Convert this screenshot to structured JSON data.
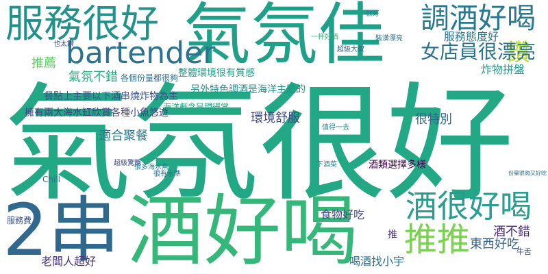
{
  "cloud": {
    "words": [
      {
        "text": "氣氛很好",
        "color": "#22a884"
      },
      {
        "text": "氣氛佳",
        "color": "#1fa088"
      },
      {
        "text": "酒好喝",
        "color": "#35b779"
      },
      {
        "text": "2串",
        "color": "#31688e"
      },
      {
        "text": "服務很好",
        "color": "#21918c"
      },
      {
        "text": "調酒好喝",
        "color": "#29798e"
      },
      {
        "text": "bartender",
        "color": "#2c728e"
      },
      {
        "text": "酒很好喝",
        "color": "#2a9d8f"
      },
      {
        "text": "推推",
        "color": "#7ad151"
      },
      {
        "text": "讚",
        "color": "#b5de2b"
      },
      {
        "text": "女店員很漂亮",
        "color": "#2c728e"
      },
      {
        "text": "服務態度好",
        "color": "#2a788e"
      },
      {
        "text": "炸物拼盤",
        "color": "#2a9d8f"
      },
      {
        "text": "氣氛不錯",
        "color": "#27ad81"
      },
      {
        "text": "推薦",
        "color": "#5ec962"
      },
      {
        "text": "整體環境很有質感",
        "color": "#1f9e89"
      },
      {
        "text": "餐點上主要以下酒串燒炸物為主",
        "color": "#3b528b"
      },
      {
        "text": "另外特色調酒是海洋主題的",
        "color": "#21918c"
      },
      {
        "text": "擁有兩大海水缸欣賞各種小魚悠遊",
        "color": "#433e85"
      },
      {
        "text": "環境舒服",
        "color": "#3e4989"
      },
      {
        "text": "很特別",
        "color": "#31688e"
      },
      {
        "text": "適合聚餐",
        "color": "#2a788e"
      },
      {
        "text": "酒類選擇多樣",
        "color": "#440154"
      },
      {
        "text": "食物好吃",
        "color": "#3e4989"
      },
      {
        "text": "酒不錯",
        "color": "#482878"
      },
      {
        "text": "東西好吃",
        "color": "#355f8d"
      },
      {
        "text": "喝酒找小宇",
        "color": "#2c728e"
      },
      {
        "text": "老闆人超好",
        "color": "#46327e"
      },
      {
        "text": "推",
        "color": "#472d7b"
      },
      {
        "text": "服務費",
        "color": "#3b528b"
      },
      {
        "text": "海洋概念呈現得當",
        "color": "#22a884"
      },
      {
        "text": "牛舌",
        "color": "#3b528b"
      },
      {
        "text": "Chill",
        "color": "#2c728e"
      },
      {
        "text": "各個份量都很夠",
        "color": "#2e6e8e"
      },
      {
        "text": "下酒菜",
        "color": "#26828e"
      },
      {
        "text": "很多海水魚",
        "color": "#277f8e"
      },
      {
        "text": "超級驚艷",
        "color": "#3e4989"
      },
      {
        "text": "一杯好酒",
        "color": "#35b779"
      },
      {
        "text": "很有水準",
        "color": "#31688e"
      },
      {
        "text": "份量很夠又好吃",
        "color": "#2c728e"
      },
      {
        "text": "也太讚",
        "color": "#3b528b"
      },
      {
        "text": "超級大叔",
        "color": "#31688e"
      },
      {
        "text": "很好",
        "color": "#26828e"
      },
      {
        "text": "裝潢漂亮",
        "color": "#2e6e8e"
      },
      {
        "text": "值得一去",
        "color": "#26828e"
      }
    ]
  }
}
